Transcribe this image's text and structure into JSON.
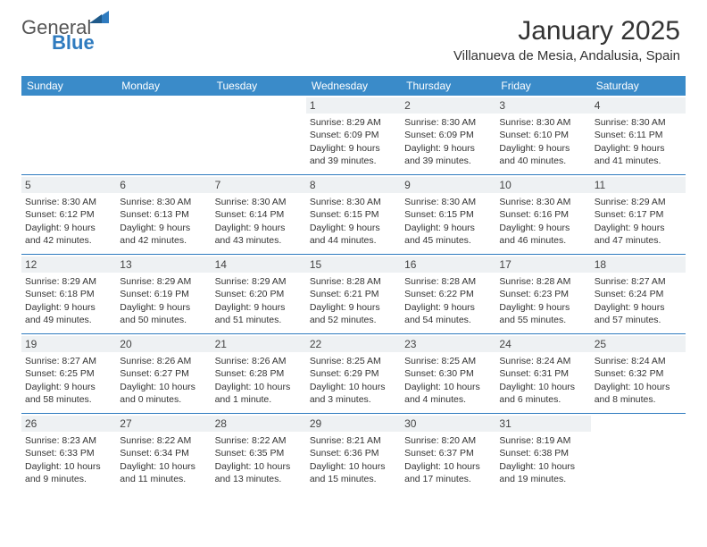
{
  "brand": {
    "name1": "General",
    "name2": "Blue"
  },
  "title": "January 2025",
  "location": "Villanueva de Mesia, Andalusia, Spain",
  "colors": {
    "header_bg": "#3a8bc9",
    "rule": "#2f7bbf",
    "daybar_bg": "#eef1f3",
    "text": "#333333",
    "brand_blue": "#2f7bbf",
    "brand_gray": "#555555"
  },
  "typography": {
    "title_fontsize": 30,
    "location_fontsize": 15,
    "dow_fontsize": 12,
    "cell_fontsize": 10.5
  },
  "days_of_week": [
    "Sunday",
    "Monday",
    "Tuesday",
    "Wednesday",
    "Thursday",
    "Friday",
    "Saturday"
  ],
  "weeks": [
    [
      {
        "n": "",
        "sr": "",
        "ss": "",
        "dl": ""
      },
      {
        "n": "",
        "sr": "",
        "ss": "",
        "dl": ""
      },
      {
        "n": "",
        "sr": "",
        "ss": "",
        "dl": ""
      },
      {
        "n": "1",
        "sr": "8:29 AM",
        "ss": "6:09 PM",
        "dl": "9 hours and 39 minutes."
      },
      {
        "n": "2",
        "sr": "8:30 AM",
        "ss": "6:09 PM",
        "dl": "9 hours and 39 minutes."
      },
      {
        "n": "3",
        "sr": "8:30 AM",
        "ss": "6:10 PM",
        "dl": "9 hours and 40 minutes."
      },
      {
        "n": "4",
        "sr": "8:30 AM",
        "ss": "6:11 PM",
        "dl": "9 hours and 41 minutes."
      }
    ],
    [
      {
        "n": "5",
        "sr": "8:30 AM",
        "ss": "6:12 PM",
        "dl": "9 hours and 42 minutes."
      },
      {
        "n": "6",
        "sr": "8:30 AM",
        "ss": "6:13 PM",
        "dl": "9 hours and 42 minutes."
      },
      {
        "n": "7",
        "sr": "8:30 AM",
        "ss": "6:14 PM",
        "dl": "9 hours and 43 minutes."
      },
      {
        "n": "8",
        "sr": "8:30 AM",
        "ss": "6:15 PM",
        "dl": "9 hours and 44 minutes."
      },
      {
        "n": "9",
        "sr": "8:30 AM",
        "ss": "6:15 PM",
        "dl": "9 hours and 45 minutes."
      },
      {
        "n": "10",
        "sr": "8:30 AM",
        "ss": "6:16 PM",
        "dl": "9 hours and 46 minutes."
      },
      {
        "n": "11",
        "sr": "8:29 AM",
        "ss": "6:17 PM",
        "dl": "9 hours and 47 minutes."
      }
    ],
    [
      {
        "n": "12",
        "sr": "8:29 AM",
        "ss": "6:18 PM",
        "dl": "9 hours and 49 minutes."
      },
      {
        "n": "13",
        "sr": "8:29 AM",
        "ss": "6:19 PM",
        "dl": "9 hours and 50 minutes."
      },
      {
        "n": "14",
        "sr": "8:29 AM",
        "ss": "6:20 PM",
        "dl": "9 hours and 51 minutes."
      },
      {
        "n": "15",
        "sr": "8:28 AM",
        "ss": "6:21 PM",
        "dl": "9 hours and 52 minutes."
      },
      {
        "n": "16",
        "sr": "8:28 AM",
        "ss": "6:22 PM",
        "dl": "9 hours and 54 minutes."
      },
      {
        "n": "17",
        "sr": "8:28 AM",
        "ss": "6:23 PM",
        "dl": "9 hours and 55 minutes."
      },
      {
        "n": "18",
        "sr": "8:27 AM",
        "ss": "6:24 PM",
        "dl": "9 hours and 57 minutes."
      }
    ],
    [
      {
        "n": "19",
        "sr": "8:27 AM",
        "ss": "6:25 PM",
        "dl": "9 hours and 58 minutes."
      },
      {
        "n": "20",
        "sr": "8:26 AM",
        "ss": "6:27 PM",
        "dl": "10 hours and 0 minutes."
      },
      {
        "n": "21",
        "sr": "8:26 AM",
        "ss": "6:28 PM",
        "dl": "10 hours and 1 minute."
      },
      {
        "n": "22",
        "sr": "8:25 AM",
        "ss": "6:29 PM",
        "dl": "10 hours and 3 minutes."
      },
      {
        "n": "23",
        "sr": "8:25 AM",
        "ss": "6:30 PM",
        "dl": "10 hours and 4 minutes."
      },
      {
        "n": "24",
        "sr": "8:24 AM",
        "ss": "6:31 PM",
        "dl": "10 hours and 6 minutes."
      },
      {
        "n": "25",
        "sr": "8:24 AM",
        "ss": "6:32 PM",
        "dl": "10 hours and 8 minutes."
      }
    ],
    [
      {
        "n": "26",
        "sr": "8:23 AM",
        "ss": "6:33 PM",
        "dl": "10 hours and 9 minutes."
      },
      {
        "n": "27",
        "sr": "8:22 AM",
        "ss": "6:34 PM",
        "dl": "10 hours and 11 minutes."
      },
      {
        "n": "28",
        "sr": "8:22 AM",
        "ss": "6:35 PM",
        "dl": "10 hours and 13 minutes."
      },
      {
        "n": "29",
        "sr": "8:21 AM",
        "ss": "6:36 PM",
        "dl": "10 hours and 15 minutes."
      },
      {
        "n": "30",
        "sr": "8:20 AM",
        "ss": "6:37 PM",
        "dl": "10 hours and 17 minutes."
      },
      {
        "n": "31",
        "sr": "8:19 AM",
        "ss": "6:38 PM",
        "dl": "10 hours and 19 minutes."
      },
      {
        "n": "",
        "sr": "",
        "ss": "",
        "dl": ""
      }
    ]
  ],
  "labels": {
    "sunrise": "Sunrise: ",
    "sunset": "Sunset: ",
    "daylight": "Daylight: "
  }
}
